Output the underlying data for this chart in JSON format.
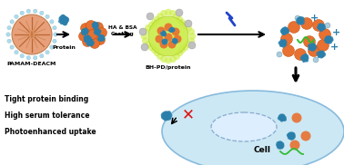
{
  "bg_color": "#ffffff",
  "cell_color": "#cce8f4",
  "cell_border": "#88bbdd",
  "nucleus_color": "#ddeeff",
  "nucleus_border": "#88aacc",
  "pamam_color": "#e8a07a",
  "protein_color": "#2a7faa",
  "orange_ball_color": "#e87030",
  "green_coat_color": "#ccee44",
  "gray_ball_color": "#c0c0c0",
  "red_x_color": "#dd1111",
  "text_color": "#000000",
  "label_pamam": "PAMAM-DEACM",
  "label_protein": "Protein",
  "label_ha_bsa": "HA & BSA",
  "label_coating": "Coating",
  "label_bhpd": "BH-PD/protein",
  "label_cell": "Cell",
  "label_tight": "Tight protein binding",
  "label_serum": "High serum tolerance",
  "label_photo": "Photoenhanced uptake"
}
